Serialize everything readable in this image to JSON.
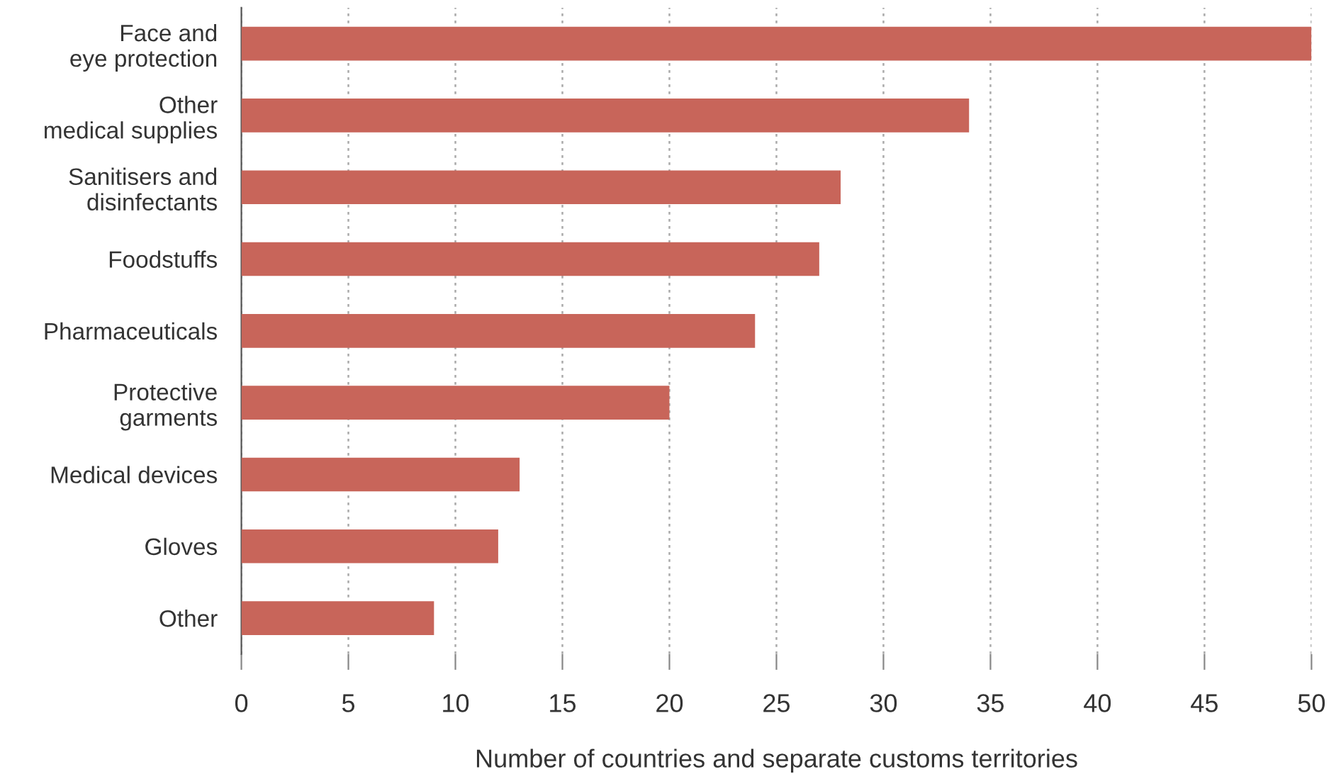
{
  "chart_data": {
    "type": "bar",
    "orientation": "horizontal",
    "categories": [
      "Face and\neye protection",
      "Other\nmedical supplies",
      "Sanitisers and\ndisinfectants",
      "Foodstuffs",
      "Pharmaceuticals",
      "Protective\ngarments",
      "Medical devices",
      "Gloves",
      "Other"
    ],
    "values": [
      50,
      34,
      28,
      27,
      24,
      20,
      13,
      12,
      9
    ],
    "color": "#c8655a",
    "xlim": [
      0,
      50
    ],
    "xticks": [
      0,
      5,
      10,
      15,
      20,
      25,
      30,
      35,
      40,
      45,
      50
    ],
    "xlabel": "Number of countries and separate customs territories",
    "grid": "x",
    "legend": false
  }
}
